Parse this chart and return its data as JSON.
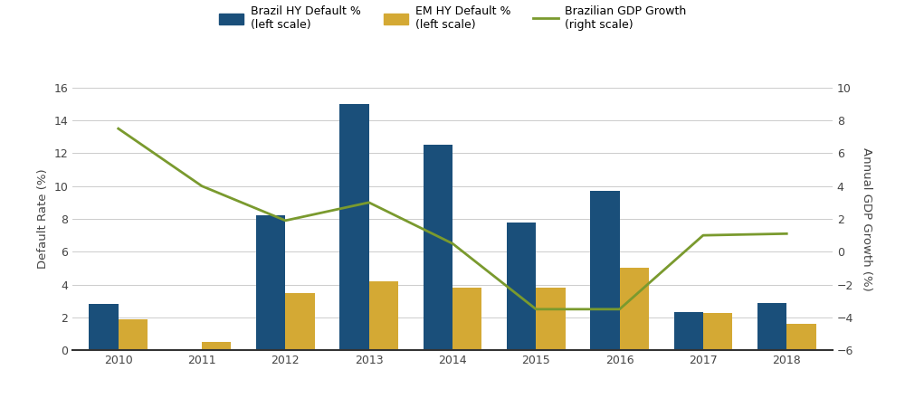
{
  "years": [
    2010,
    2011,
    2012,
    2013,
    2014,
    2015,
    2016,
    2017,
    2018
  ],
  "brazil_hy": [
    2.8,
    0.0,
    8.2,
    15.0,
    12.5,
    7.8,
    9.7,
    2.35,
    2.9
  ],
  "em_hy": [
    1.9,
    0.5,
    3.5,
    4.2,
    3.8,
    3.8,
    5.0,
    2.25,
    1.6
  ],
  "gdp_growth": [
    7.5,
    4.0,
    1.9,
    3.0,
    0.5,
    -3.5,
    -3.5,
    1.0,
    1.1
  ],
  "bar_color_brazil": "#1a4f7a",
  "bar_color_em": "#d4a934",
  "line_color_gdp": "#7a9a2e",
  "left_ylim": [
    0,
    16
  ],
  "right_ylim": [
    -6,
    10
  ],
  "left_yticks": [
    0,
    2,
    4,
    6,
    8,
    10,
    12,
    14,
    16
  ],
  "right_yticks": [
    -6,
    -4,
    -2,
    0,
    2,
    4,
    6,
    8,
    10
  ],
  "ylabel_left": "Default Rate (%)",
  "ylabel_right": "Annual GDP Growth (%)",
  "legend_brazil": "Brazil HY Default %\n(left scale)",
  "legend_em": "EM HY Default %\n(left scale)",
  "legend_gdp": "Brazilian GDP Growth\n(right scale)",
  "background_color": "#ffffff",
  "grid_color": "#cccccc",
  "bar_width": 0.35,
  "label_fontsize": 9.5,
  "tick_fontsize": 9,
  "legend_fontsize": 9
}
